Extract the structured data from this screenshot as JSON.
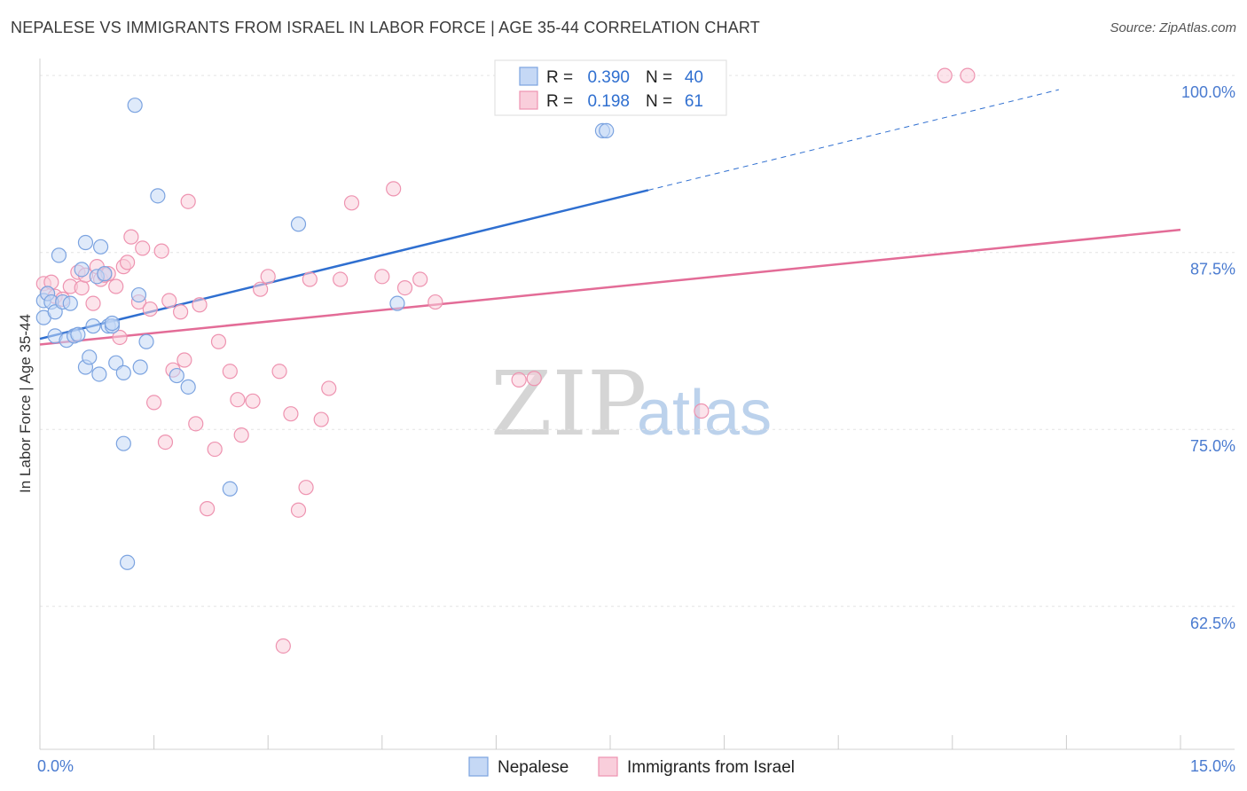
{
  "title": "NEPALESE VS IMMIGRANTS FROM ISRAEL IN LABOR FORCE | AGE 35-44 CORRELATION CHART",
  "source": "Source: ZipAtlas.com",
  "watermark": {
    "zip": "ZIP",
    "atlas": "atlas"
  },
  "colors": {
    "nepalese_fill": "#c5d8f5",
    "nepalese_stroke": "#7ba3e0",
    "nepalese_line": "#2f6fd0",
    "israel_fill": "#f9cedb",
    "israel_stroke": "#ee93b0",
    "israel_line": "#e36c97",
    "axis_label": "#4a7bd0",
    "grid": "#e3e3e3"
  },
  "legend_top": [
    {
      "r_label": "R =",
      "r_value": "0.390",
      "n_label": "N =",
      "n_value": "40",
      "series": "nepalese"
    },
    {
      "r_label": "R =",
      "r_value": "0.198",
      "n_label": "N =",
      "n_value": "61",
      "series": "israel"
    }
  ],
  "legend_bottom": [
    {
      "label": "Nepalese",
      "series": "nepalese"
    },
    {
      "label": "Immigrants from Israel",
      "series": "israel"
    }
  ],
  "chart_data": {
    "type": "scatter",
    "title": "NEPALESE VS IMMIGRANTS FROM ISRAEL IN LABOR FORCE | AGE 35-44 CORRELATION CHART",
    "xlabel": "",
    "ylabel": "In Labor Force | Age 35-44",
    "xlim": [
      0,
      15
    ],
    "ylim": [
      52.4,
      101.2
    ],
    "x_tick_labels": [
      {
        "value": 0,
        "label": "0.0%"
      },
      {
        "value": 15,
        "label": "15.0%"
      }
    ],
    "x_minor_ticks": [
      0,
      1.5,
      3,
      4.5,
      6,
      7.5,
      9,
      10.5,
      12,
      13.5,
      15
    ],
    "y_ticks": [
      {
        "value": 100,
        "label": "100.0%"
      },
      {
        "value": 87.5,
        "label": "87.5%"
      },
      {
        "value": 75,
        "label": "75.0%"
      },
      {
        "value": 62.5,
        "label": "62.5%"
      }
    ],
    "series": [
      {
        "name": "Nepalese",
        "key": "nepalese",
        "R": 0.39,
        "N": 40,
        "trend": {
          "x0": 0,
          "y0": 81.4,
          "x1": 8.0,
          "y1": 91.9,
          "x_dash_end": 13.4,
          "y_dash_end": 99.0
        },
        "points": [
          [
            0.05,
            84.1
          ],
          [
            0.05,
            82.9
          ],
          [
            0.1,
            84.6
          ],
          [
            0.15,
            84.0
          ],
          [
            0.2,
            83.3
          ],
          [
            0.2,
            81.6
          ],
          [
            0.25,
            87.3
          ],
          [
            0.3,
            84.0
          ],
          [
            0.35,
            81.3
          ],
          [
            0.4,
            83.9
          ],
          [
            0.45,
            81.6
          ],
          [
            0.5,
            81.7
          ],
          [
            0.55,
            86.3
          ],
          [
            0.6,
            79.4
          ],
          [
            0.6,
            88.2
          ],
          [
            0.65,
            80.1
          ],
          [
            0.7,
            82.3
          ],
          [
            0.75,
            85.8
          ],
          [
            0.78,
            78.9
          ],
          [
            0.8,
            87.9
          ],
          [
            0.85,
            86.0
          ],
          [
            0.9,
            82.3
          ],
          [
            0.95,
            82.3
          ],
          [
            0.95,
            82.5
          ],
          [
            1.0,
            79.7
          ],
          [
            1.1,
            79.0
          ],
          [
            1.1,
            74.0
          ],
          [
            1.15,
            65.6
          ],
          [
            1.25,
            97.9
          ],
          [
            1.3,
            84.5
          ],
          [
            1.32,
            79.4
          ],
          [
            1.4,
            81.2
          ],
          [
            1.55,
            91.5
          ],
          [
            1.8,
            78.8
          ],
          [
            1.95,
            78.0
          ],
          [
            2.5,
            70.8
          ],
          [
            3.4,
            89.5
          ],
          [
            4.7,
            83.9
          ],
          [
            7.4,
            96.1
          ],
          [
            7.45,
            96.1
          ]
        ]
      },
      {
        "name": "Immigrants from Israel",
        "key": "israel",
        "R": 0.198,
        "N": 61,
        "trend": {
          "x0": 0,
          "y0": 81.0,
          "x1": 15,
          "y1": 89.1
        },
        "points": [
          [
            0.05,
            85.3
          ],
          [
            0.1,
            84.6
          ],
          [
            0.15,
            85.4
          ],
          [
            0.2,
            84.4
          ],
          [
            0.3,
            84.2
          ],
          [
            0.4,
            85.1
          ],
          [
            0.5,
            86.1
          ],
          [
            0.55,
            85.0
          ],
          [
            0.6,
            85.9
          ],
          [
            0.7,
            83.9
          ],
          [
            0.75,
            86.5
          ],
          [
            0.8,
            85.6
          ],
          [
            0.85,
            85.9
          ],
          [
            0.9,
            86.0
          ],
          [
            1.0,
            85.1
          ],
          [
            1.05,
            81.5
          ],
          [
            1.1,
            86.5
          ],
          [
            1.15,
            86.8
          ],
          [
            1.2,
            88.6
          ],
          [
            1.3,
            84.0
          ],
          [
            1.35,
            87.8
          ],
          [
            1.45,
            83.5
          ],
          [
            1.5,
            76.9
          ],
          [
            1.6,
            87.6
          ],
          [
            1.65,
            74.1
          ],
          [
            1.7,
            84.1
          ],
          [
            1.75,
            79.2
          ],
          [
            1.85,
            83.3
          ],
          [
            1.9,
            79.9
          ],
          [
            1.95,
            91.1
          ],
          [
            2.05,
            75.4
          ],
          [
            2.1,
            83.8
          ],
          [
            2.2,
            69.4
          ],
          [
            2.3,
            73.6
          ],
          [
            2.35,
            81.2
          ],
          [
            2.5,
            79.1
          ],
          [
            2.6,
            77.1
          ],
          [
            2.65,
            74.6
          ],
          [
            2.8,
            77.0
          ],
          [
            2.9,
            84.9
          ],
          [
            3.0,
            85.8
          ],
          [
            3.15,
            79.1
          ],
          [
            3.2,
            59.7
          ],
          [
            3.3,
            76.1
          ],
          [
            3.4,
            69.3
          ],
          [
            3.5,
            70.9
          ],
          [
            3.55,
            85.6
          ],
          [
            3.7,
            75.7
          ],
          [
            3.8,
            77.9
          ],
          [
            3.95,
            85.6
          ],
          [
            4.1,
            91.0
          ],
          [
            4.5,
            85.8
          ],
          [
            4.65,
            92.0
          ],
          [
            4.8,
            85.0
          ],
          [
            5.0,
            85.6
          ],
          [
            5.2,
            84.0
          ],
          [
            6.3,
            78.5
          ],
          [
            6.5,
            78.6
          ],
          [
            8.7,
            76.3
          ],
          [
            11.9,
            100.0
          ],
          [
            12.2,
            100.0
          ]
        ]
      }
    ]
  }
}
